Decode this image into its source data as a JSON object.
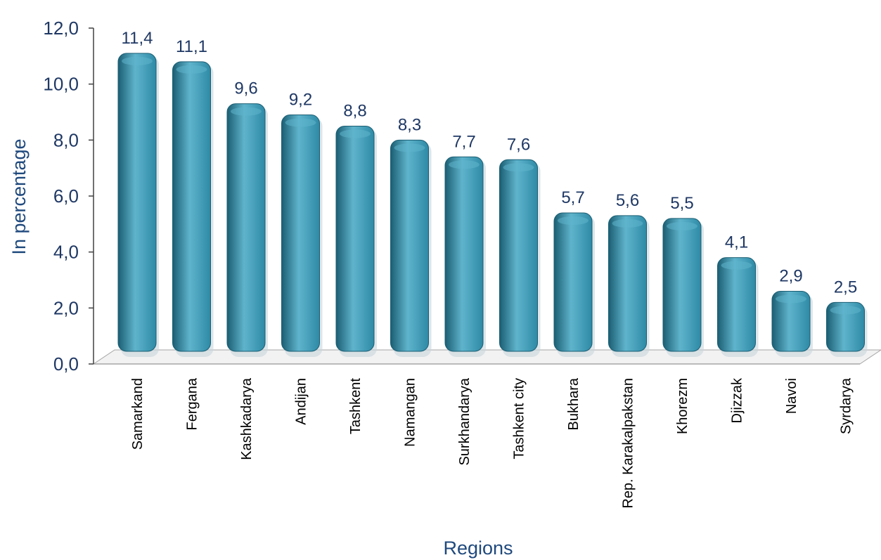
{
  "chart_data": {
    "type": "bar",
    "title": "",
    "xlabel": "Regions",
    "ylabel": "In percentage",
    "ylim": [
      0,
      12
    ],
    "yticks": [
      "0,0",
      "2,0",
      "4,0",
      "6,0",
      "8,0",
      "10,0",
      "12,0"
    ],
    "categories": [
      "Samarkand",
      "Fergana",
      "Kashkadarya",
      "Andijan",
      "Tashkent",
      "Namangan",
      "Surkhandarya",
      "Tashkent  city",
      "Bukhara",
      "Rep. Karakalpakstan",
      "Khorezm",
      "Djizzak",
      "Navoi",
      "Syrdarya"
    ],
    "values": [
      11.4,
      11.1,
      9.6,
      9.2,
      8.8,
      8.3,
      7.7,
      7.6,
      5.7,
      5.6,
      5.5,
      4.1,
      2.9,
      2.5
    ],
    "value_labels": [
      "11,4",
      "11,1",
      "9,6",
      "9,2",
      "8,8",
      "8,3",
      "7,7",
      "7,6",
      "5,7",
      "5,6",
      "5,5",
      "4,1",
      "2,9",
      "2,5"
    ],
    "grid": false,
    "legend": "none",
    "colors": {
      "bar": "#2e8aa6",
      "bar_dark": "#1b5e73",
      "bar_light": "#5fb4cc",
      "text": "#1f3864",
      "axis_title": "#1f497d",
      "axis_line": "#a6a6a6"
    }
  }
}
